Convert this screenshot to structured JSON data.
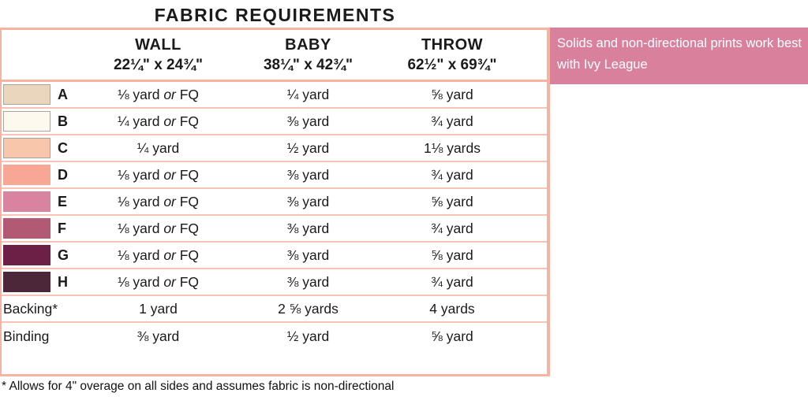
{
  "title": "FABRIC REQUIREMENTS",
  "note": {
    "text": "Solids and non-directional prints work best with Ivy League",
    "bg_color": "#d8809c"
  },
  "footnote": "* Allows for 4\" overage on all sides and assumes fabric is non-directional",
  "colors": {
    "table_border": "#f8b2a2",
    "row_separator": "#f9c2b4",
    "note_background": "#d8809c"
  },
  "table": {
    "columns": [
      {
        "label": "WALL",
        "dims": "22¼\" x 24¾\""
      },
      {
        "label": "BABY",
        "dims": "38¼\" x 42¾\""
      },
      {
        "label": "THROW",
        "dims": "62½\" x 69¾\""
      }
    ],
    "rows": [
      {
        "label": "A",
        "swatch_color": "#e9d6bd",
        "wall": "⅛ yard or FQ",
        "baby": "¼ yard",
        "throw": "⅝ yard"
      },
      {
        "label": "B",
        "swatch_color": "#fdf9ef",
        "wall": "¼ yard or FQ",
        "baby": "⅜ yard",
        "throw": "¾ yard"
      },
      {
        "label": "C",
        "swatch_color": "#f8c6aa",
        "wall": "¼ yard",
        "baby": "½ yard",
        "throw": "1⅛ yards"
      },
      {
        "label": "D",
        "swatch_color": "#f9a795",
        "wall": "⅛ yard or FQ",
        "baby": "⅜ yard",
        "throw": "¾ yard"
      },
      {
        "label": "E",
        "swatch_color": "#d884a0",
        "wall": "⅛ yard or FQ",
        "baby": "⅜ yard",
        "throw": "⅝ yard"
      },
      {
        "label": "F",
        "swatch_color": "#b25a73",
        "wall": "⅛ yard or FQ",
        "baby": "⅜ yard",
        "throw": "¾ yard"
      },
      {
        "label": "G",
        "swatch_color": "#6d2045",
        "wall": "⅛ yard or FQ",
        "baby": "⅜ yard",
        "throw": "⅝ yard"
      },
      {
        "label": "H",
        "swatch_color": "#4c2639",
        "wall": "⅛ yard or FQ",
        "baby": "⅜ yard",
        "throw": "¾ yard"
      },
      {
        "label": "Backing*",
        "swatch_color": null,
        "wall": "1 yard",
        "baby": "2 ⅝ yards",
        "throw": "4 yards"
      },
      {
        "label": "Binding",
        "swatch_color": null,
        "wall": "⅜ yard",
        "baby": "½ yard",
        "throw": "⅝ yard"
      }
    ]
  }
}
